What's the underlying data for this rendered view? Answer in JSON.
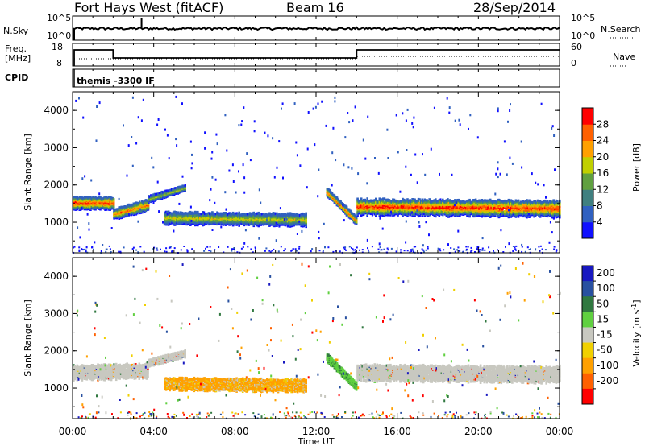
{
  "header": {
    "radar": "Fort Hays West (fitACF)",
    "beam": "Beam 16",
    "date": "28/Sep/2014"
  },
  "strips": {
    "nsky_label": "N.Sky",
    "nsky_top": "10^5",
    "nsky_bottom": "10^0",
    "nsearch_label": "N.Search",
    "nsearch_top": "10^5",
    "nsearch_bottom": "10^0",
    "freq_label": "Freq.",
    "freq_unit": "[MHz]",
    "freq_top": "18",
    "freq_bottom": "8",
    "nave_label": "Nave",
    "nave_top": "60",
    "nave_bottom": "0",
    "cpid_label": "CPID",
    "cpid_value": "themis -3300 IF"
  },
  "chart_data": [
    {
      "type": "heatmap",
      "panel": "power",
      "ylabel": "Slant Range [km]",
      "ylim": [
        180,
        4500
      ],
      "yticks": [
        1000,
        2000,
        3000,
        4000
      ],
      "colorbar_label": "Power [dB]",
      "colorbar_ticks": [
        4,
        8,
        12,
        16,
        20,
        24,
        28
      ],
      "colorbar_range": [
        0,
        30
      ],
      "colors": [
        "#1010ff",
        "#3060c0",
        "#408080",
        "#60a040",
        "#c0d000",
        "#ffa000",
        "#ff6000",
        "#ff0000"
      ],
      "x_hours": [
        0,
        24
      ],
      "bands": [
        {
          "x0": 0.0,
          "x1": 2.0,
          "center": [
            1500,
            1500
          ],
          "width": 320,
          "peak": 28
        },
        {
          "x0": 2.0,
          "x1": 3.7,
          "center": [
            1200,
            1450
          ],
          "width": 280,
          "peak": 24
        },
        {
          "x0": 3.7,
          "x1": 5.5,
          "center": [
            1600,
            1900
          ],
          "width": 160,
          "peak": 16
        },
        {
          "x0": 4.5,
          "x1": 11.5,
          "center": [
            1100,
            1050
          ],
          "width": 320,
          "peak": 18
        },
        {
          "x0": 12.5,
          "x1": 14.0,
          "center": [
            1800,
            1000
          ],
          "width": 200,
          "peak": 26
        },
        {
          "x0": 14.0,
          "x1": 24.0,
          "center": [
            1400,
            1350
          ],
          "width": 420,
          "peak": 28
        }
      ]
    },
    {
      "type": "heatmap",
      "panel": "velocity",
      "ylabel": "Slant Range [km]",
      "ylim": [
        180,
        4500
      ],
      "yticks": [
        1000,
        2000,
        3000,
        4000
      ],
      "colorbar_label": "Velocity [m s^-1]",
      "colorbar_ticks": [
        200,
        100,
        50,
        15,
        -15,
        -50,
        -100,
        -200
      ],
      "colors": [
        "#1818c0",
        "#2850a0",
        "#307840",
        "#60d040",
        "#c8c8c0",
        "#f0d000",
        "#ffa000",
        "#ff6000",
        "#ff0000"
      ],
      "xlabel": "Time UT",
      "xticks": [
        "00:00",
        "04:00",
        "08:00",
        "12:00",
        "16:00",
        "20:00",
        "00:00"
      ],
      "x_hours": [
        0,
        24
      ],
      "bands": [
        {
          "x0": 0.0,
          "x1": 3.7,
          "center": [
            1400,
            1450
          ],
          "width": 380,
          "kind": "ground"
        },
        {
          "x0": 3.7,
          "x1": 5.5,
          "center": [
            1650,
            1900
          ],
          "width": 180,
          "kind": "ground"
        },
        {
          "x0": 4.5,
          "x1": 11.5,
          "center": [
            1100,
            1050
          ],
          "width": 320,
          "kind": "negative"
        },
        {
          "x0": 12.5,
          "x1": 14.0,
          "center": [
            1800,
            1000
          ],
          "width": 200,
          "kind": "positive"
        },
        {
          "x0": 14.0,
          "x1": 24.0,
          "center": [
            1400,
            1350
          ],
          "width": 420,
          "kind": "ground"
        }
      ]
    }
  ]
}
